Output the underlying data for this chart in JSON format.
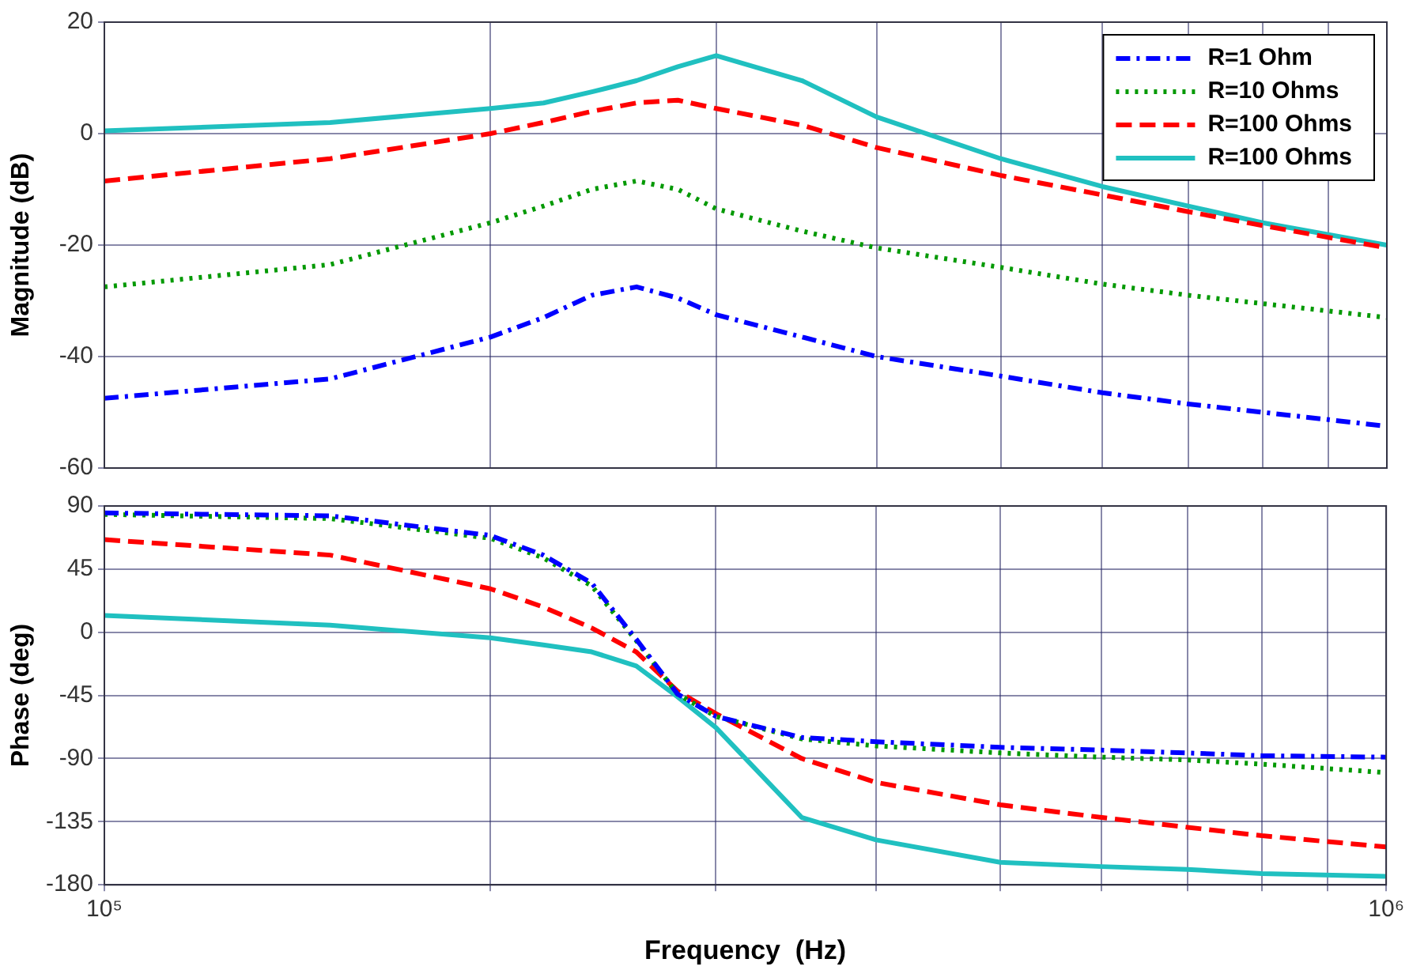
{
  "chart_data": [
    {
      "type": "line",
      "ylabel": "Magnitude (dB)",
      "log": "x",
      "grid": true,
      "legend": "top right",
      "tick_labels": "y",
      "marker": "none",
      "x": [
        100000,
        150000,
        200000,
        220000,
        240000,
        260000,
        280000,
        300000,
        350000,
        400000,
        500000,
        600000,
        700000,
        800000,
        1000000
      ],
      "xlim": [
        100000,
        1000000
      ],
      "xticks": [
        {
          "value": 100000,
          "label": null
        },
        {
          "value": 200000,
          "label": null
        },
        {
          "value": 300000,
          "label": null
        },
        {
          "value": 400000,
          "label": null
        },
        {
          "value": 500000,
          "label": null
        },
        {
          "value": 600000,
          "label": null
        },
        {
          "value": 700000,
          "label": null
        },
        {
          "value": 800000,
          "label": null
        },
        {
          "value": 900000,
          "label": null
        },
        {
          "value": 1000000,
          "label": null
        }
      ],
      "ylim": [
        -60,
        20
      ],
      "yticks": [
        -60,
        -40,
        -20,
        0,
        20
      ],
      "series": [
        {
          "name": "R=1 Ohm",
          "color": "#0000ff",
          "line_style": "dashdot",
          "values": [
            -47.5,
            -44,
            -36.5,
            -33,
            -29,
            -27.5,
            -29.5,
            -32.5,
            -36.5,
            -40,
            -43.5,
            -46.5,
            -48.5,
            -50,
            -52.5
          ]
        },
        {
          "name": "R=10 Ohms",
          "color": "#009900",
          "line_style": "dotted",
          "values": [
            -27.5,
            -23.5,
            -16,
            -13,
            -10,
            -8.5,
            -10,
            -13.5,
            -17.5,
            -20.5,
            -24,
            -27,
            -29,
            -30.5,
            -33
          ]
        },
        {
          "name": "R=100 Ohms",
          "color": "#ff0000",
          "line_style": "dashed",
          "values": [
            -8.5,
            -4.5,
            0,
            2,
            4,
            5.5,
            6,
            4.5,
            1.5,
            -2.5,
            -7.5,
            -11,
            -14,
            -16.5,
            -20.5
          ]
        },
        {
          "name": "R=100 Ohms",
          "color": "#20c0c0",
          "line_style": "solid",
          "values": [
            0.5,
            2,
            4.5,
            5.5,
            7.5,
            9.5,
            12,
            14,
            9.5,
            3,
            -4.5,
            -9.5,
            -13,
            -16,
            -20
          ]
        }
      ]
    },
    {
      "type": "line",
      "xlabel": "Frequency  (Hz)",
      "ylabel": "Phase (deg)",
      "log": "x",
      "grid": true,
      "marker": "none",
      "x": [
        100000,
        150000,
        200000,
        220000,
        240000,
        260000,
        280000,
        300000,
        350000,
        400000,
        500000,
        600000,
        700000,
        800000,
        1000000
      ],
      "xlim": [
        100000,
        1000000
      ],
      "xticks": [
        {
          "value": 100000,
          "label": "10⁵"
        },
        {
          "value": 200000,
          "label": null
        },
        {
          "value": 300000,
          "label": null
        },
        {
          "value": 400000,
          "label": null
        },
        {
          "value": 500000,
          "label": null
        },
        {
          "value": 600000,
          "label": null
        },
        {
          "value": 700000,
          "label": null
        },
        {
          "value": 800000,
          "label": null
        },
        {
          "value": 900000,
          "label": null
        },
        {
          "value": 1000000,
          "label": "10⁶"
        }
      ],
      "ylim": [
        -180,
        90
      ],
      "yticks": [
        -180,
        -135,
        -90,
        -45,
        0,
        45,
        90
      ],
      "series": [
        {
          "color": "#0000ff",
          "line_style": "dashdot",
          "values": [
            85,
            83,
            69,
            55,
            35,
            -5,
            -44,
            -60,
            -75,
            -78,
            -82,
            -84,
            -86,
            -88,
            -89
          ]
        },
        {
          "color": "#009900",
          "line_style": "dotted",
          "values": [
            84,
            81,
            67,
            53,
            33,
            -6,
            -44,
            -60,
            -76,
            -81,
            -86,
            -89,
            -91,
            -94,
            -100
          ]
        },
        {
          "color": "#ff0000",
          "line_style": "dashed",
          "values": [
            66,
            55,
            31,
            18,
            3,
            -14,
            -42,
            -58,
            -90,
            -107,
            -123,
            -132,
            -139,
            -145,
            -153
          ]
        },
        {
          "color": "#20c0c0",
          "line_style": "solid",
          "values": [
            12,
            5,
            -4,
            -9,
            -14,
            -24,
            -46,
            -68,
            -132,
            -148,
            -164,
            -167,
            -169,
            -172,
            -174
          ]
        }
      ]
    }
  ]
}
